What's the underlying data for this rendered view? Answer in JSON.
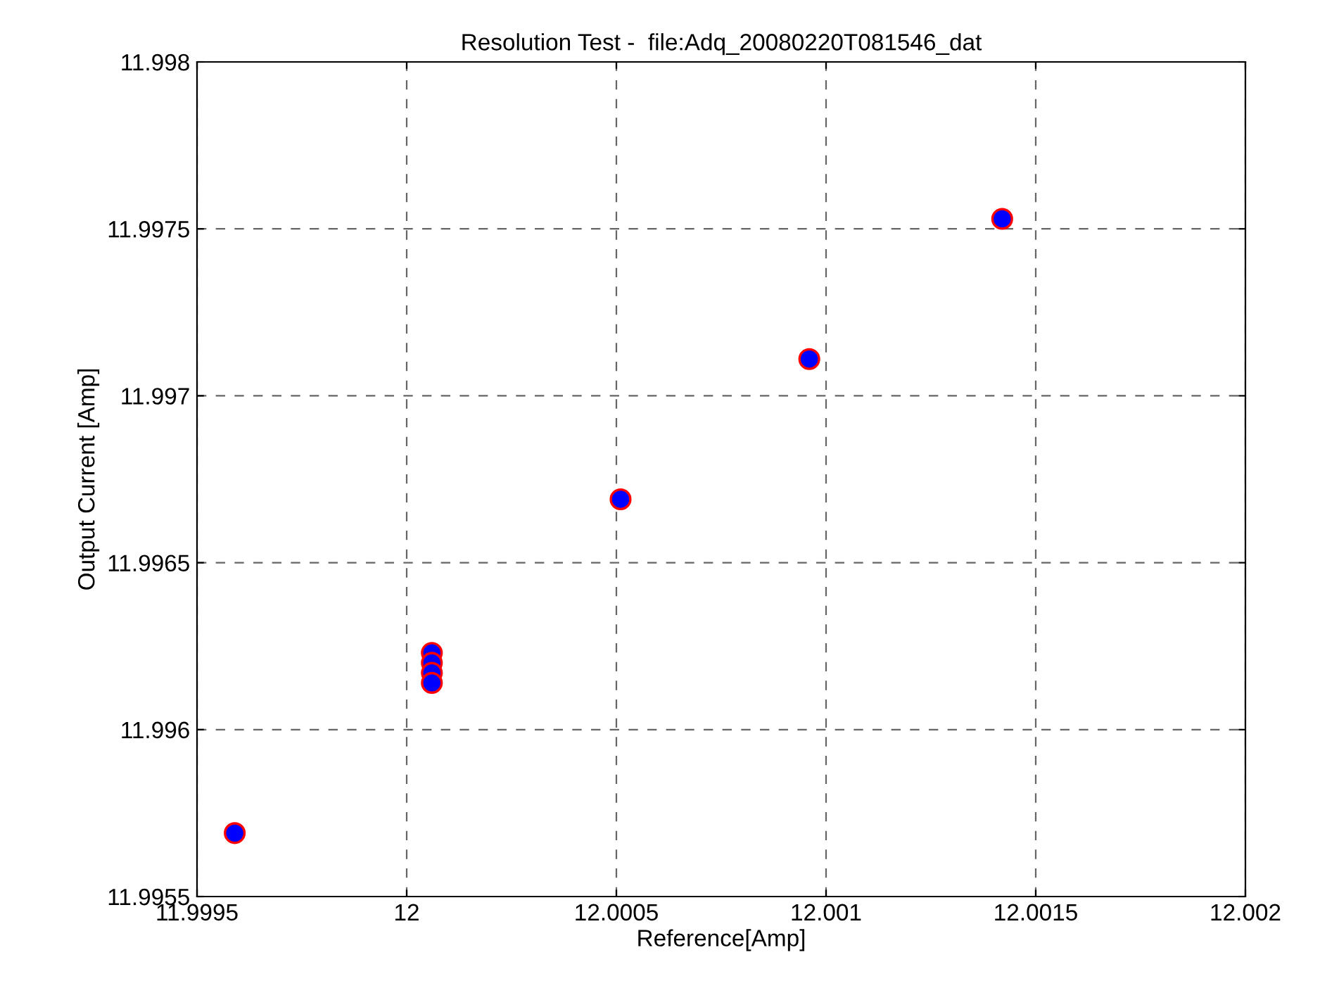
{
  "chart_data": {
    "type": "scatter",
    "title": "Resolution Test -  file:Adq_20080220T081546_dat",
    "xlabel": "Reference[Amp]",
    "ylabel": "Output Current [Amp]",
    "x": [
      11.99959,
      12.00006,
      12.00006,
      12.00006,
      12.00006,
      12.00051,
      12.00096,
      12.00142
    ],
    "series": [
      {
        "color": "#0000ff",
        "values": [
          11.99569,
          11.99623,
          11.9962,
          11.99617,
          11.99614,
          11.99669,
          11.99711,
          11.99753
        ]
      }
    ],
    "xlim": [
      11.9995,
      12.002
    ],
    "xticks": [
      11.9995,
      12,
      12.0005,
      12.001,
      12.0015,
      12.002
    ],
    "ylim": [
      11.9955,
      11.998
    ],
    "yticks": [
      11.9955,
      11.996,
      11.9965,
      11.997,
      11.9975,
      11.998
    ],
    "grid": true,
    "marker": "circle"
  }
}
